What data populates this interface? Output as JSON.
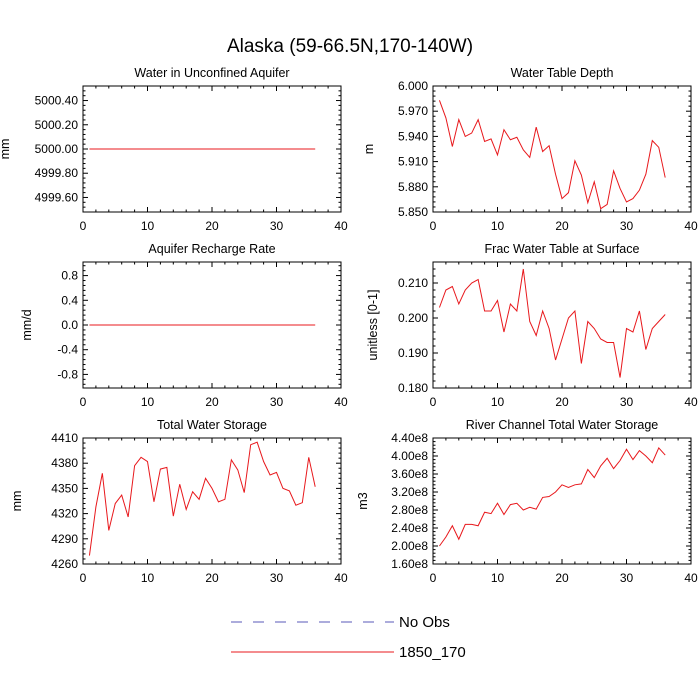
{
  "figure": {
    "title": "Alaska (59-66.5N,170-140W)"
  },
  "colors": {
    "model_line": "#e8181c",
    "obs_line": "#5a5ab8",
    "axis": "#000000"
  },
  "legend": {
    "items": [
      {
        "label": "No Obs",
        "style": "dashed",
        "color": "#5a5ab8"
      },
      {
        "label": "1850_170",
        "style": "solid",
        "color": "#e8181c"
      }
    ]
  },
  "chart_data": [
    {
      "type": "line",
      "title": "Water in Unconfined Aquifer",
      "ylabel": "mm",
      "xlim": [
        0,
        40
      ],
      "ylim": [
        4999.48,
        5000.52
      ],
      "xticks": [
        "0",
        "10",
        "20",
        "30",
        "40"
      ],
      "yticks": [
        {
          "value": 5000.4,
          "label": "5000.40"
        },
        {
          "value": 5000.2,
          "label": "5000.20"
        },
        {
          "value": 5000.0,
          "label": "5000.00"
        },
        {
          "value": 4999.8,
          "label": "4999.80"
        },
        {
          "value": 4999.6,
          "label": "4999.60"
        }
      ],
      "series": [
        {
          "name": "1850_170",
          "x": [
            1,
            36
          ],
          "y": [
            5000.0,
            5000.0
          ]
        }
      ]
    },
    {
      "type": "line",
      "title": "Water Table Depth",
      "ylabel": "m",
      "xlim": [
        0,
        40
      ],
      "ylim": [
        5.85,
        6.0
      ],
      "xticks": [
        "0",
        "10",
        "20",
        "30",
        "40"
      ],
      "yticks": [
        {
          "value": 6.0,
          "label": "6.000"
        },
        {
          "value": 5.97,
          "label": "5.970"
        },
        {
          "value": 5.94,
          "label": "5.940"
        },
        {
          "value": 5.91,
          "label": "5.910"
        },
        {
          "value": 5.88,
          "label": "5.880"
        },
        {
          "value": 5.85,
          "label": "5.850"
        }
      ],
      "series": [
        {
          "name": "1850_170",
          "x": [
            1,
            2,
            3,
            4,
            5,
            6,
            7,
            8,
            9,
            10,
            11,
            12,
            13,
            14,
            15,
            16,
            17,
            18,
            19,
            20,
            21,
            22,
            23,
            24,
            25,
            26,
            27,
            28,
            29,
            30,
            31,
            32,
            33,
            34,
            35,
            36
          ],
          "y": [
            5.983,
            5.962,
            5.928,
            5.96,
            5.94,
            5.944,
            5.96,
            5.934,
            5.937,
            5.918,
            5.948,
            5.936,
            5.939,
            5.924,
            5.915,
            5.951,
            5.922,
            5.929,
            5.895,
            5.866,
            5.873,
            5.911,
            5.894,
            5.861,
            5.886,
            5.854,
            5.859,
            5.899,
            5.878,
            5.862,
            5.866,
            5.876,
            5.895,
            5.935,
            5.927,
            5.891
          ]
        }
      ]
    },
    {
      "type": "line",
      "title": "Aquifer Recharge Rate",
      "ylabel": "mm/d",
      "xlim": [
        0,
        40
      ],
      "ylim": [
        -1.02,
        1.02
      ],
      "xticks": [
        "0",
        "10",
        "20",
        "30",
        "40"
      ],
      "yticks": [
        {
          "value": 0.8,
          "label": "0.8"
        },
        {
          "value": 0.4,
          "label": "0.4"
        },
        {
          "value": 0.0,
          "label": "0.0"
        },
        {
          "value": -0.4,
          "label": "-0.4"
        },
        {
          "value": -0.8,
          "label": "-0.8"
        }
      ],
      "series": [
        {
          "name": "1850_170",
          "x": [
            1,
            36
          ],
          "y": [
            0.0,
            0.0
          ]
        }
      ]
    },
    {
      "type": "line",
      "title": "Frac Water Table at Surface",
      "ylabel": "unitless [0-1]",
      "xlim": [
        0,
        40
      ],
      "ylim": [
        0.18,
        0.216
      ],
      "xticks": [
        "0",
        "10",
        "20",
        "30",
        "40"
      ],
      "yticks": [
        {
          "value": 0.21,
          "label": "0.210"
        },
        {
          "value": 0.2,
          "label": "0.200"
        },
        {
          "value": 0.19,
          "label": "0.190"
        },
        {
          "value": 0.18,
          "label": "0.180"
        }
      ],
      "series": [
        {
          "name": "1850_170",
          "x": [
            1,
            2,
            3,
            4,
            5,
            6,
            7,
            8,
            9,
            10,
            11,
            12,
            13,
            14,
            15,
            16,
            17,
            18,
            19,
            20,
            21,
            22,
            23,
            24,
            25,
            26,
            27,
            28,
            29,
            30,
            31,
            32,
            33,
            34,
            35,
            36
          ],
          "y": [
            0.203,
            0.208,
            0.209,
            0.204,
            0.208,
            0.21,
            0.211,
            0.202,
            0.202,
            0.205,
            0.196,
            0.204,
            0.202,
            0.214,
            0.199,
            0.195,
            0.202,
            0.197,
            0.188,
            0.194,
            0.2,
            0.202,
            0.187,
            0.199,
            0.197,
            0.194,
            0.193,
            0.193,
            0.183,
            0.197,
            0.196,
            0.202,
            0.191,
            0.197,
            0.199,
            0.201
          ]
        }
      ]
    },
    {
      "type": "line",
      "title": "Total Water Storage",
      "ylabel": "mm",
      "xlim": [
        0,
        40
      ],
      "ylim": [
        4260,
        4410
      ],
      "xticks": [
        "0",
        "10",
        "20",
        "30",
        "40"
      ],
      "yticks": [
        {
          "value": 4410,
          "label": "4410"
        },
        {
          "value": 4380,
          "label": "4380"
        },
        {
          "value": 4350,
          "label": "4350"
        },
        {
          "value": 4320,
          "label": "4320"
        },
        {
          "value": 4290,
          "label": "4290"
        },
        {
          "value": 4260,
          "label": "4260"
        }
      ],
      "series": [
        {
          "name": "1850_170",
          "x": [
            1,
            2,
            3,
            4,
            5,
            6,
            7,
            8,
            9,
            10,
            11,
            12,
            13,
            14,
            15,
            16,
            17,
            18,
            19,
            20,
            21,
            22,
            23,
            24,
            25,
            26,
            27,
            28,
            29,
            30,
            31,
            32,
            33,
            34,
            35,
            36
          ],
          "y": [
            4270,
            4328,
            4368,
            4300,
            4332,
            4342,
            4316,
            4377,
            4387,
            4382,
            4334,
            4373,
            4375,
            4317,
            4355,
            4325,
            4346,
            4337,
            4362,
            4350,
            4334,
            4337,
            4384,
            4372,
            4345,
            4402,
            4405,
            4382,
            4366,
            4369,
            4350,
            4347,
            4330,
            4333,
            4387,
            4352
          ]
        }
      ]
    },
    {
      "type": "line",
      "title": "River Channel Total Water Storage",
      "ylabel": "m3",
      "xlim": [
        0,
        40
      ],
      "ylim": [
        160000000,
        440000000
      ],
      "xticks": [
        "0",
        "10",
        "20",
        "30",
        "40"
      ],
      "yticks": [
        {
          "value": 440000000,
          "label": "4.40e8"
        },
        {
          "value": 400000000,
          "label": "4.00e8"
        },
        {
          "value": 360000000,
          "label": "3.60e8"
        },
        {
          "value": 320000000,
          "label": "3.20e8"
        },
        {
          "value": 280000000,
          "label": "2.80e8"
        },
        {
          "value": 240000000,
          "label": "2.40e8"
        },
        {
          "value": 200000000,
          "label": "2.00e8"
        },
        {
          "value": 160000000,
          "label": "1.60e8"
        }
      ],
      "series": [
        {
          "name": "1850_170",
          "x": [
            1,
            2,
            3,
            4,
            5,
            6,
            7,
            8,
            9,
            10,
            11,
            12,
            13,
            14,
            15,
            16,
            17,
            18,
            19,
            20,
            21,
            22,
            23,
            24,
            25,
            26,
            27,
            28,
            29,
            30,
            31,
            32,
            33,
            34,
            35,
            36
          ],
          "y": [
            200000000,
            220000000,
            245000000,
            215000000,
            248000000,
            248000000,
            245000000,
            275000000,
            272000000,
            295000000,
            270000000,
            292000000,
            295000000,
            280000000,
            286000000,
            282000000,
            308000000,
            310000000,
            320000000,
            336000000,
            330000000,
            336000000,
            338000000,
            370000000,
            352000000,
            378000000,
            395000000,
            372000000,
            390000000,
            415000000,
            392000000,
            412000000,
            400000000,
            385000000,
            418000000,
            402000000
          ]
        }
      ]
    }
  ]
}
